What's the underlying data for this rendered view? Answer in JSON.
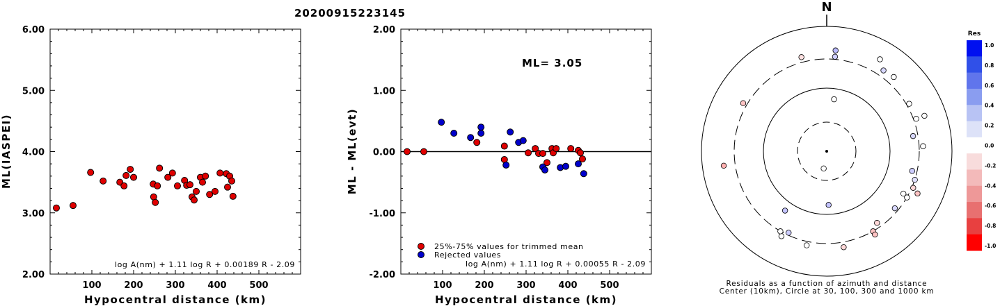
{
  "figure_title": "20200915223145",
  "chart_data": [
    {
      "type": "scatter",
      "name_key": "ml_vs_distance",
      "xlabel": "Hypocentral distance (km)",
      "ylabel": "ML(IASPEI)",
      "xlim": [
        0,
        600
      ],
      "ylim": [
        2.0,
        6.0
      ],
      "xticks": [
        100,
        200,
        300,
        400,
        500
      ],
      "yticks": [
        2.0,
        3.0,
        4.0,
        5.0,
        6.0
      ],
      "ytick_labels": [
        "2.00",
        "3.00",
        "4.00",
        "5.00",
        "6.00"
      ],
      "formula": "log A(nm) + 1.11 log R + 0.00189 R - 2.09",
      "marker_color": "#e00000",
      "points": [
        {
          "x": 15,
          "y": 3.08
        },
        {
          "x": 55,
          "y": 3.12
        },
        {
          "x": 97,
          "y": 3.66
        },
        {
          "x": 127,
          "y": 3.52
        },
        {
          "x": 167,
          "y": 3.5
        },
        {
          "x": 177,
          "y": 3.44
        },
        {
          "x": 182,
          "y": 3.61
        },
        {
          "x": 192,
          "y": 3.71
        },
        {
          "x": 200,
          "y": 3.58
        },
        {
          "x": 247,
          "y": 3.47
        },
        {
          "x": 248,
          "y": 3.26
        },
        {
          "x": 252,
          "y": 3.17
        },
        {
          "x": 257,
          "y": 3.44
        },
        {
          "x": 262,
          "y": 3.73
        },
        {
          "x": 282,
          "y": 3.58
        },
        {
          "x": 293,
          "y": 3.65
        },
        {
          "x": 305,
          "y": 3.44
        },
        {
          "x": 322,
          "y": 3.53
        },
        {
          "x": 327,
          "y": 3.45
        },
        {
          "x": 335,
          "y": 3.46
        },
        {
          "x": 340,
          "y": 3.26
        },
        {
          "x": 345,
          "y": 3.21
        },
        {
          "x": 350,
          "y": 3.35
        },
        {
          "x": 360,
          "y": 3.58
        },
        {
          "x": 365,
          "y": 3.5
        },
        {
          "x": 372,
          "y": 3.6
        },
        {
          "x": 382,
          "y": 3.3
        },
        {
          "x": 395,
          "y": 3.35
        },
        {
          "x": 407,
          "y": 3.65
        },
        {
          "x": 422,
          "y": 3.64
        },
        {
          "x": 425,
          "y": 3.42
        },
        {
          "x": 430,
          "y": 3.6
        },
        {
          "x": 435,
          "y": 3.52
        },
        {
          "x": 438,
          "y": 3.27
        }
      ]
    },
    {
      "type": "scatter",
      "name_key": "residual_vs_distance",
      "xlabel": "Hypocentral distance (km)",
      "ylabel": "ML - ML(evt)",
      "xlim": [
        0,
        600
      ],
      "ylim": [
        -2.0,
        2.0
      ],
      "xticks": [
        100,
        200,
        300,
        400,
        500
      ],
      "yticks": [
        -2.0,
        -1.0,
        0.0,
        1.0,
        2.0
      ],
      "ytick_labels": [
        "-2.00",
        "-1.00",
        "0.00",
        "1.00",
        "2.00"
      ],
      "zero_line": true,
      "annotation": "ML= 3.05",
      "formula": "log A(nm) + 1.11 log R + 0.00055 R - 2.09",
      "legend": [
        {
          "label": "25%-75% values for trimmed mean",
          "color": "#e00000"
        },
        {
          "label": "Rejected values",
          "color": "#0000cc"
        }
      ],
      "series": [
        {
          "name": "25%-75% values for trimmed mean",
          "color": "#e00000",
          "points": [
            {
              "x": 15,
              "y": 0.0
            },
            {
              "x": 55,
              "y": 0.0
            },
            {
              "x": 182,
              "y": 0.15
            },
            {
              "x": 248,
              "y": 0.09
            },
            {
              "x": 248,
              "y": -0.13
            },
            {
              "x": 305,
              "y": -0.02
            },
            {
              "x": 322,
              "y": 0.05
            },
            {
              "x": 330,
              "y": -0.03
            },
            {
              "x": 340,
              "y": -0.03
            },
            {
              "x": 350,
              "y": -0.18
            },
            {
              "x": 362,
              "y": 0.05
            },
            {
              "x": 365,
              "y": -0.02
            },
            {
              "x": 372,
              "y": 0.05
            },
            {
              "x": 407,
              "y": 0.05
            },
            {
              "x": 425,
              "y": 0.02
            },
            {
              "x": 430,
              "y": -0.02
            },
            {
              "x": 435,
              "y": -0.12
            }
          ]
        },
        {
          "name": "Rejected values",
          "color": "#0000cc",
          "points": [
            {
              "x": 97,
              "y": 0.48
            },
            {
              "x": 127,
              "y": 0.3
            },
            {
              "x": 167,
              "y": 0.23
            },
            {
              "x": 192,
              "y": 0.4
            },
            {
              "x": 192,
              "y": 0.3
            },
            {
              "x": 252,
              "y": -0.22
            },
            {
              "x": 262,
              "y": 0.32
            },
            {
              "x": 282,
              "y": 0.15
            },
            {
              "x": 293,
              "y": 0.18
            },
            {
              "x": 340,
              "y": -0.25
            },
            {
              "x": 345,
              "y": -0.3
            },
            {
              "x": 382,
              "y": -0.26
            },
            {
              "x": 395,
              "y": -0.24
            },
            {
              "x": 425,
              "y": -0.2
            },
            {
              "x": 438,
              "y": -0.36
            }
          ]
        }
      ]
    },
    {
      "type": "polar-scatter",
      "name_key": "residual_map",
      "north_label": "N",
      "caption_line1": "Residuals as a function of azimuth and distance",
      "caption_line2": "Center (10km), Circle at 30, 100, 300 and 1000 km",
      "colorbar_title": "Res",
      "colorbar_ticks": [
        "1.0",
        "0.8",
        "0.6",
        "0.4",
        "0.2",
        "0.0",
        "-0.2",
        "-0.4",
        "-0.6",
        "-0.8",
        "-1.0"
      ],
      "colorbar_colors": [
        "#0010f0",
        "#3050e8",
        "#6075ec",
        "#8a9df0",
        "#b8c3f4",
        "#dde2f8",
        "#ffffff",
        "#f8dcdc",
        "#f3baba",
        "#ee9898",
        "#e87070",
        "#e84040",
        "#ff0000"
      ],
      "points": [
        {
          "azimuth_deg": 345,
          "range": 0.78,
          "res": -0.15
        },
        {
          "azimuth_deg": 5,
          "range": 0.76,
          "res": 0.25
        },
        {
          "azimuth_deg": 5,
          "range": 0.81,
          "res": 0.35
        },
        {
          "azimuth_deg": 30,
          "range": 0.85,
          "res": 0.0
        },
        {
          "azimuth_deg": 35,
          "range": 0.79,
          "res": 0.2
        },
        {
          "azimuth_deg": 42,
          "range": 0.8,
          "res": 0.0
        },
        {
          "azimuth_deg": 300,
          "range": 0.77,
          "res": -0.3
        },
        {
          "azimuth_deg": 8,
          "range": 0.42,
          "res": 0.0
        },
        {
          "azimuth_deg": 60,
          "range": 0.76,
          "res": 0.0
        },
        {
          "azimuth_deg": 70,
          "range": 0.83,
          "res": 0.0
        },
        {
          "azimuth_deg": 70,
          "range": 0.76,
          "res": 0.0
        },
        {
          "azimuth_deg": 80,
          "range": 0.7,
          "res": 0.2
        },
        {
          "azimuth_deg": 87,
          "range": 0.77,
          "res": 0.0
        },
        {
          "azimuth_deg": 103,
          "range": 0.7,
          "res": 0.25
        },
        {
          "azimuth_deg": 108,
          "range": 0.74,
          "res": 0.15
        },
        {
          "azimuth_deg": 113,
          "range": 0.75,
          "res": -0.2
        },
        {
          "azimuth_deg": 115,
          "range": 0.8,
          "res": -0.3
        },
        {
          "azimuth_deg": 119,
          "range": 0.7,
          "res": 0.0
        },
        {
          "azimuth_deg": 120,
          "range": 0.74,
          "res": 0.0
        },
        {
          "azimuth_deg": 130,
          "range": 0.71,
          "res": 0.2
        },
        {
          "azimuth_deg": 145,
          "range": 0.7,
          "res": -0.2
        },
        {
          "azimuth_deg": 150,
          "range": 0.74,
          "res": -0.3
        },
        {
          "azimuth_deg": 150,
          "range": 0.77,
          "res": -0.3
        },
        {
          "azimuth_deg": 170,
          "range": 0.78,
          "res": -0.2
        },
        {
          "azimuth_deg": 178,
          "range": 0.43,
          "res": 0.3
        },
        {
          "azimuth_deg": 192,
          "range": 0.77,
          "res": 0.0
        },
        {
          "azimuth_deg": 205,
          "range": 0.72,
          "res": 0.25
        },
        {
          "azimuth_deg": 208,
          "range": 0.77,
          "res": 0.0
        },
        {
          "azimuth_deg": 210,
          "range": 0.74,
          "res": 0.0
        },
        {
          "azimuth_deg": 215,
          "range": 0.58,
          "res": 0.3
        },
        {
          "azimuth_deg": 262,
          "range": 0.83,
          "res": -0.4
        },
        {
          "azimuth_deg": 190,
          "range": 0.14,
          "res": 0.0
        }
      ]
    }
  ]
}
